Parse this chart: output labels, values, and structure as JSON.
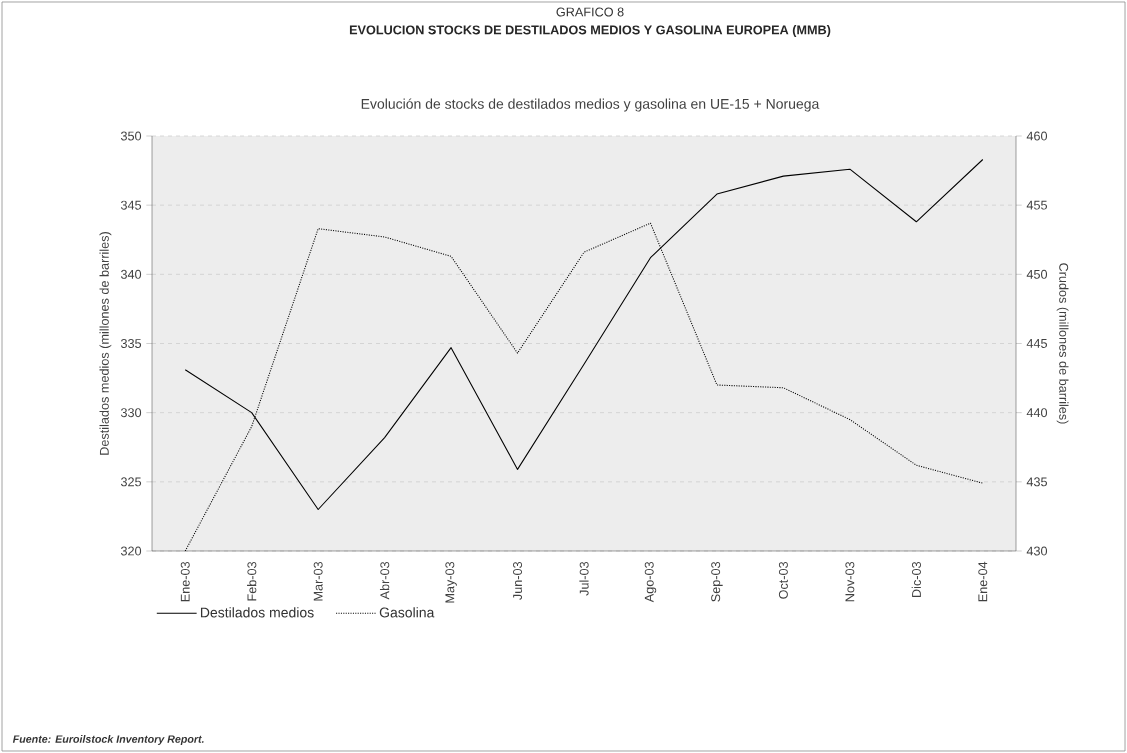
{
  "chart_data": {
    "type": "line",
    "title": "GRAFICO 8",
    "subtitle": "EVOLUCION STOCKS DE DESTILADOS MEDIOS Y GASOLINA EUROPEA (MMB)",
    "annotations": [
      "Evolución de stocks de destilados medios y gasolina en UE-15 + Noruega",
      "*Fuente: Euroilstock Inventory Report.*"
    ],
    "ylabel": "Destilados medios (millones de barriles)",
    "y2label": "Crudos (millones de barriles)",
    "categories": [
      "Ene-03",
      "Feb-03",
      "Mar-03",
      "Abr-03",
      "May-03",
      "Jun-03",
      "Jul-03",
      "Ago-03",
      "Sep-03",
      "Oct-03",
      "Nov-03",
      "Dic-03",
      "Ene-04"
    ],
    "series": [
      {
        "name": "Destilados medios",
        "color": "#000000",
        "line_style": "solid",
        "values": [
          333.1,
          330.0,
          323.0,
          328.2,
          334.7,
          325.9,
          333.5,
          341.2,
          345.8,
          347.1,
          347.6,
          343.8,
          348.3
        ]
      },
      {
        "name": "Gasolina",
        "color": "#000000",
        "line_style": "dotted",
        "axis": "y2",
        "values": [
          430.0,
          439.0,
          453.3,
          452.7,
          451.3,
          444.3,
          451.6,
          453.7,
          442.0,
          441.8,
          439.5,
          436.2,
          434.9
        ]
      }
    ],
    "ylim": [
      320,
      350
    ],
    "yticks": [
      320,
      325,
      330,
      335,
      340,
      345,
      350
    ],
    "y2lim": [
      430,
      460
    ],
    "y2ticks": [
      430,
      435,
      440,
      445,
      450,
      455,
      460
    ],
    "grid": "y",
    "legend": "bottom"
  }
}
